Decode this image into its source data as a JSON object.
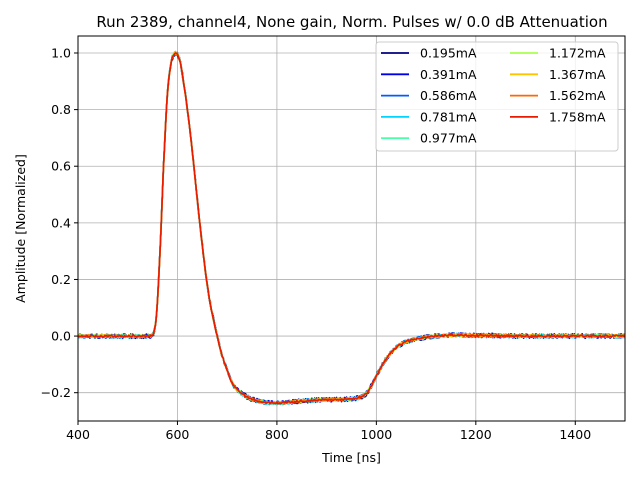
{
  "chart_data": {
    "type": "line",
    "title": "Run 2389, channel4, None gain, Norm. Pulses w/ 0.0 dB Attenuation",
    "xlabel": "Time [ns]",
    "ylabel": "Amplitude [Normalized]",
    "xlim": [
      400,
      1500
    ],
    "ylim": [
      -0.3,
      1.06
    ],
    "xticks": [
      400,
      600,
      800,
      1000,
      1200,
      1400
    ],
    "yticks": [
      -0.2,
      0.0,
      0.2,
      0.4,
      0.6,
      0.8,
      1.0
    ],
    "xtick_labels": [
      "400",
      "600",
      "800",
      "1000",
      "1200",
      "1400"
    ],
    "ytick_labels": [
      "−0.2",
      "0.0",
      "0.2",
      "0.4",
      "0.6",
      "0.8",
      "1.0"
    ],
    "grid": true,
    "legend_position": "upper-right",
    "legend_columns": 2,
    "pulse_shape_x": [
      400,
      540,
      552,
      558,
      565,
      572,
      580,
      588,
      596,
      600,
      605,
      612,
      620,
      630,
      640,
      650,
      660,
      670,
      680,
      690,
      700,
      710,
      720,
      740,
      760,
      780,
      800,
      820,
      840,
      860,
      880,
      900,
      920,
      940,
      960,
      975,
      985,
      1000,
      1020,
      1040,
      1060,
      1080,
      1100,
      1120,
      1140,
      1160,
      1180,
      1200,
      1300,
      1400,
      1500
    ],
    "pulse_shape_y": [
      0.0,
      0.0,
      0.01,
      0.08,
      0.3,
      0.6,
      0.86,
      0.97,
      1.0,
      0.995,
      0.97,
      0.9,
      0.8,
      0.65,
      0.48,
      0.32,
      0.18,
      0.08,
      0.0,
      -0.07,
      -0.12,
      -0.165,
      -0.19,
      -0.215,
      -0.228,
      -0.235,
      -0.236,
      -0.234,
      -0.231,
      -0.228,
      -0.226,
      -0.225,
      -0.224,
      -0.223,
      -0.22,
      -0.21,
      -0.19,
      -0.14,
      -0.08,
      -0.04,
      -0.02,
      -0.01,
      -0.004,
      0.0,
      0.002,
      0.004,
      0.003,
      0.002,
      0.0,
      0.0,
      0.0
    ],
    "series": [
      {
        "name": "0.195mA",
        "color": "#00007f"
      },
      {
        "name": "0.391mA",
        "color": "#0000e8"
      },
      {
        "name": "0.586mA",
        "color": "#005cff"
      },
      {
        "name": "0.781mA",
        "color": "#00d4ff"
      },
      {
        "name": "0.977mA",
        "color": "#4dffaa"
      },
      {
        "name": "1.172mA",
        "color": "#aaff4d"
      },
      {
        "name": "1.367mA",
        "color": "#ffc400"
      },
      {
        "name": "1.562mA",
        "color": "#ff6800"
      },
      {
        "name": "1.758mA",
        "color": "#e81b00"
      }
    ]
  }
}
